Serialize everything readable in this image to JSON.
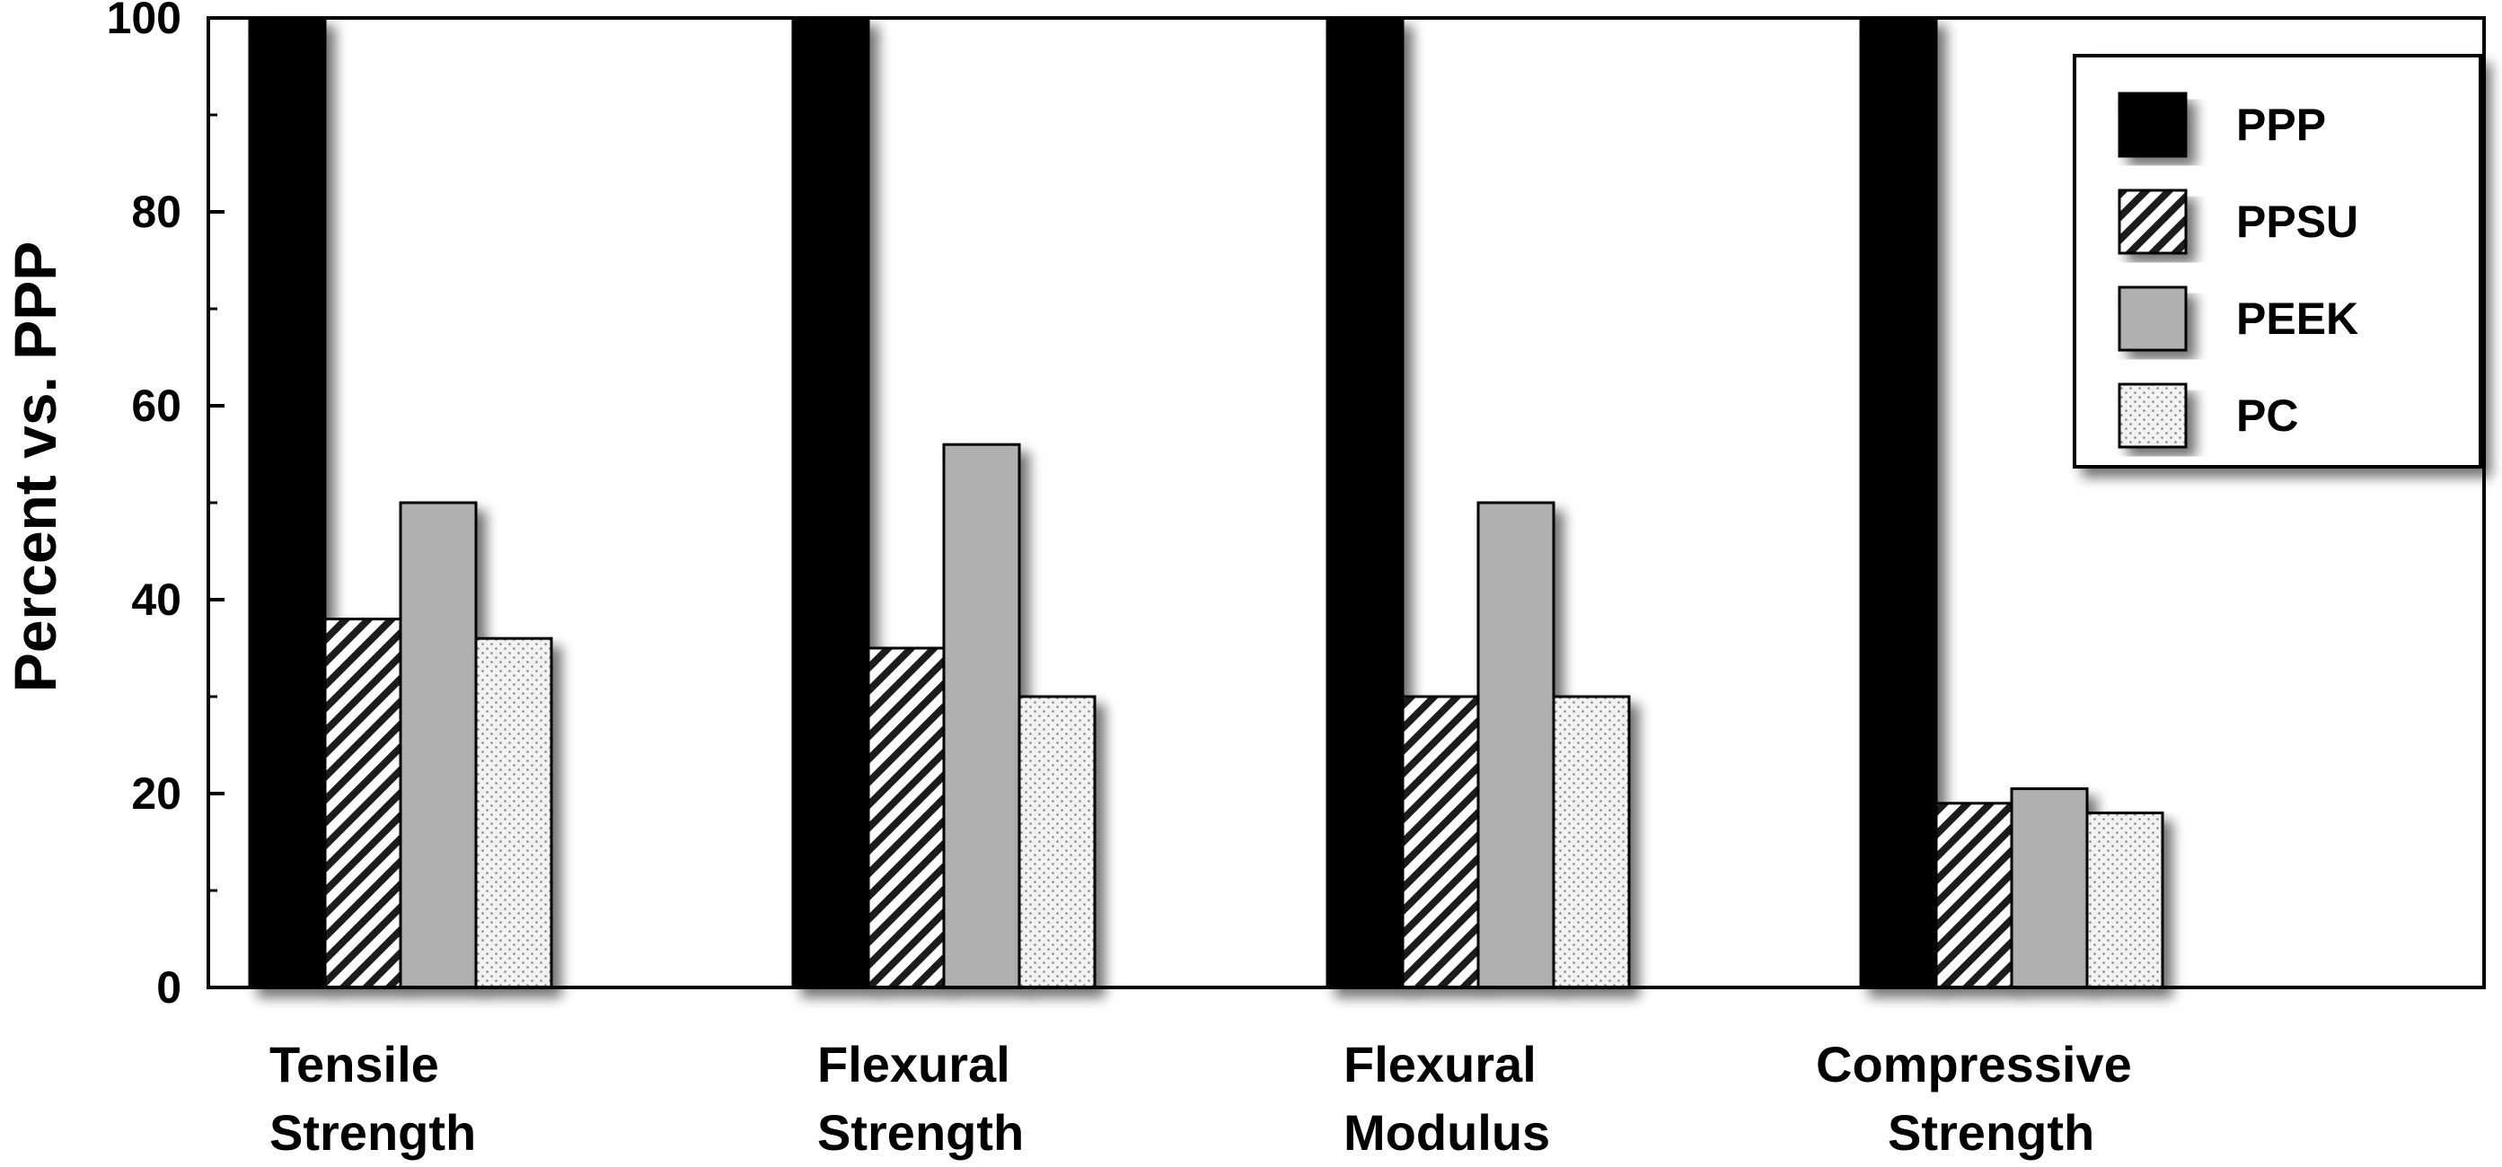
{
  "chart_data": {
    "type": "bar",
    "title": "",
    "xlabel": "",
    "ylabel": "Percent vs. PPP",
    "ylim": [
      0,
      100
    ],
    "yticks": [
      0,
      20,
      40,
      60,
      80,
      100
    ],
    "categories": [
      [
        "Tensile",
        "Strength"
      ],
      [
        "Flexural",
        "Strength"
      ],
      [
        "Flexural",
        "Modulus"
      ],
      [
        "Compressive",
        "Strength"
      ]
    ],
    "series": [
      {
        "name": "PPP",
        "pattern": "solid",
        "color": "#000000",
        "values": [
          100,
          100,
          100,
          100
        ]
      },
      {
        "name": "PPSU",
        "pattern": "hatch",
        "color": "#000000",
        "values": [
          38,
          35,
          30,
          19
        ]
      },
      {
        "name": "PEEK",
        "pattern": "gray",
        "color": "#b0b0b0",
        "values": [
          50,
          56,
          50,
          20.5
        ]
      },
      {
        "name": "PC",
        "pattern": "dotted",
        "color": "#e8e8e8",
        "values": [
          36,
          30,
          30,
          18
        ]
      }
    ],
    "grid": false,
    "legend_position": "top-right"
  }
}
